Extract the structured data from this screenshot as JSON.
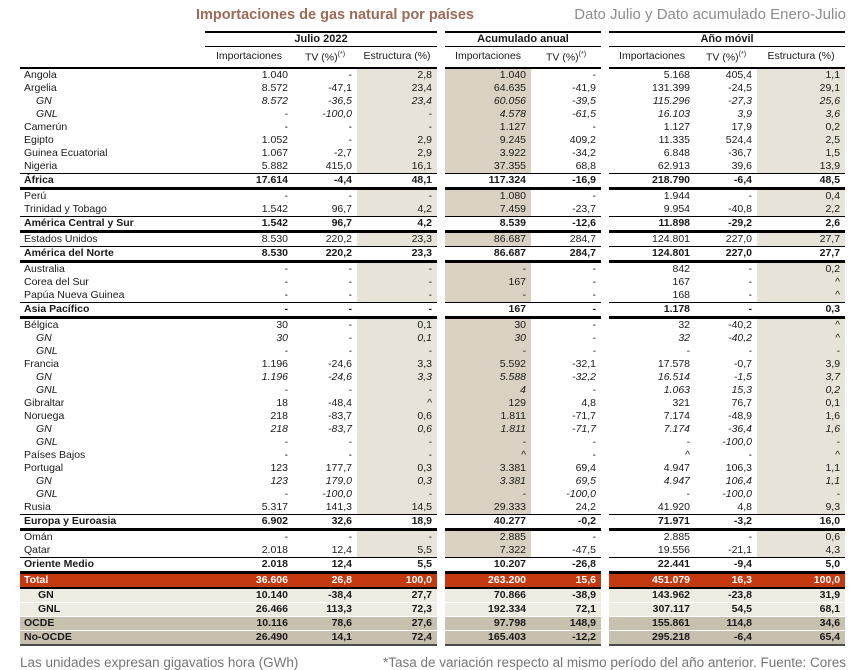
{
  "header": {
    "title": "Importaciones de gas natural por países",
    "subtitle": "Dato Julio y Dato acumulado Enero-Julio"
  },
  "table": {
    "tv_sup": "(*)",
    "groups": [
      {
        "label": "Julio 2022",
        "cols": [
          "Importaciones",
          "TV (%)",
          "Estructura (%)"
        ]
      },
      {
        "label": "Acumulado anual",
        "cols": [
          "Importaciones",
          "TV (%)"
        ]
      },
      {
        "label": "Año móvil",
        "cols": [
          "Importaciones",
          "TV (%)",
          "Estructura (%)"
        ]
      }
    ],
    "rows": [
      {
        "name": "Angola",
        "style": "normal",
        "cells": [
          "1.040",
          "-",
          "2,8",
          "1.040",
          "-",
          "5.168",
          "405,4",
          "1,1"
        ]
      },
      {
        "name": "Argelia",
        "style": "normal",
        "cells": [
          "8.572",
          "-47,1",
          "23,4",
          "64.635",
          "-41,9",
          "131.399",
          "-24,5",
          "29,1"
        ]
      },
      {
        "name": "GN",
        "style": "sub",
        "cells": [
          "8.572",
          "-36,5",
          "23,4",
          "60.056",
          "-39,5",
          "115.296",
          "-27,3",
          "25,6"
        ]
      },
      {
        "name": "GNL",
        "style": "sub",
        "cells": [
          "-",
          "-100,0",
          "-",
          "4.578",
          "-61,5",
          "16.103",
          "3,9",
          "3,6"
        ]
      },
      {
        "name": "Camerún",
        "style": "normal",
        "cells": [
          "-",
          "-",
          "-",
          "1.127",
          "-",
          "1.127",
          "17,9",
          "0,2"
        ]
      },
      {
        "name": "Egipto",
        "style": "normal",
        "cells": [
          "1.052",
          "-",
          "2,9",
          "9.245",
          "409,2",
          "11.335",
          "524,4",
          "2,5"
        ]
      },
      {
        "name": "Guinea Ecuatorial",
        "style": "normal",
        "cells": [
          "1.067",
          "-2,7",
          "2,9",
          "3.922",
          "-34,2",
          "6.848",
          "-36,7",
          "1,5"
        ]
      },
      {
        "name": "Nigeria",
        "style": "normal",
        "cells": [
          "5.882",
          "415,0",
          "16,1",
          "37.355",
          "68,8",
          "62.913",
          "39,6",
          "13,9"
        ]
      },
      {
        "name": "África",
        "style": "region",
        "cells": [
          "17.614",
          "-4,4",
          "48,1",
          "117.324",
          "-16,9",
          "218.790",
          "-6,4",
          "48,5"
        ]
      },
      {
        "name": "Perú",
        "style": "normal",
        "cells": [
          "-",
          "-",
          "-",
          "1.080",
          "-",
          "1.944",
          "-",
          "0,4"
        ]
      },
      {
        "name": "Trinidad y Tobago",
        "style": "normal",
        "cells": [
          "1.542",
          "96,7",
          "4,2",
          "7.459",
          "-23,7",
          "9.954",
          "-40,8",
          "2,2"
        ]
      },
      {
        "name": "América Central y Sur",
        "style": "region",
        "cells": [
          "1.542",
          "96,7",
          "4,2",
          "8.539",
          "-12,6",
          "11.898",
          "-29,2",
          "2,6"
        ]
      },
      {
        "name": "Estados Unidos",
        "style": "normal",
        "cells": [
          "8.530",
          "220,2",
          "23,3",
          "86.687",
          "284,7",
          "124.801",
          "227,0",
          "27,7"
        ]
      },
      {
        "name": "América del Norte",
        "style": "region",
        "cells": [
          "8.530",
          "220,2",
          "23,3",
          "86.687",
          "284,7",
          "124.801",
          "227,0",
          "27,7"
        ]
      },
      {
        "name": "Australia",
        "style": "normal",
        "cells": [
          "-",
          "-",
          "-",
          "-",
          "-",
          "842",
          "-",
          "0,2"
        ]
      },
      {
        "name": "Corea del Sur",
        "style": "normal",
        "cells": [
          "-",
          "-",
          "-",
          "167",
          "-",
          "167",
          "-",
          "^"
        ]
      },
      {
        "name": "Papúa Nueva Guinea",
        "style": "normal",
        "cells": [
          "-",
          "-",
          "-",
          "-",
          "-",
          "168",
          "-",
          "^"
        ]
      },
      {
        "name": "Asia Pacífico",
        "style": "region",
        "cells": [
          "-",
          "-",
          "-",
          "167",
          "-",
          "1.178",
          "-",
          "0,3"
        ]
      },
      {
        "name": "Bélgica",
        "style": "normal",
        "cells": [
          "30",
          "-",
          "0,1",
          "30",
          "-",
          "32",
          "-40,2",
          "^"
        ]
      },
      {
        "name": "GN",
        "style": "sub",
        "cells": [
          "30",
          "-",
          "0,1",
          "30",
          "-",
          "32",
          "-40,2",
          "^"
        ]
      },
      {
        "name": "GNL",
        "style": "sub",
        "cells": [
          "-",
          "-",
          "-",
          "-",
          "-",
          "-",
          "-",
          "-"
        ]
      },
      {
        "name": "Francia",
        "style": "normal",
        "cells": [
          "1.196",
          "-24,6",
          "3,3",
          "5.592",
          "-32,1",
          "17.578",
          "-0,7",
          "3,9"
        ]
      },
      {
        "name": "GN",
        "style": "sub",
        "cells": [
          "1.196",
          "-24,6",
          "3,3",
          "5.588",
          "-32,2",
          "16.514",
          "-1,5",
          "3,7"
        ]
      },
      {
        "name": "GNL",
        "style": "sub",
        "cells": [
          "-",
          "-",
          "-",
          "4",
          "-",
          "1.063",
          "15,3",
          "0,2"
        ]
      },
      {
        "name": "Gibraltar",
        "style": "normal",
        "cells": [
          "18",
          "-48,4",
          "^",
          "129",
          "4,8",
          "321",
          "76,7",
          "0,1"
        ]
      },
      {
        "name": "Noruega",
        "style": "normal",
        "cells": [
          "218",
          "-83,7",
          "0,6",
          "1.811",
          "-71,7",
          "7.174",
          "-48,9",
          "1,6"
        ]
      },
      {
        "name": "GN",
        "style": "sub",
        "cells": [
          "218",
          "-83,7",
          "0,6",
          "1.811",
          "-71,7",
          "7.174",
          "-36,4",
          "1,6"
        ]
      },
      {
        "name": "GNL",
        "style": "sub",
        "cells": [
          "-",
          "-",
          "-",
          "-",
          "-",
          "-",
          "-100,0",
          "-"
        ]
      },
      {
        "name": "Países Bajos",
        "style": "normal",
        "cells": [
          "-",
          "-",
          "-",
          "^",
          "-",
          "^",
          "-",
          "^"
        ]
      },
      {
        "name": "Portugal",
        "style": "normal",
        "cells": [
          "123",
          "177,7",
          "0,3",
          "3.381",
          "69,4",
          "4.947",
          "106,3",
          "1,1"
        ]
      },
      {
        "name": "GN",
        "style": "sub",
        "cells": [
          "123",
          "179,0",
          "0,3",
          "3.381",
          "69,5",
          "4.947",
          "106,4",
          "1,1"
        ]
      },
      {
        "name": "GNL",
        "style": "sub",
        "cells": [
          "-",
          "-100,0",
          "-",
          "-",
          "-100,0",
          "-",
          "-100,0",
          "-"
        ]
      },
      {
        "name": "Rusia",
        "style": "normal",
        "cells": [
          "5.317",
          "141,3",
          "14,5",
          "29.333",
          "24,2",
          "41.920",
          "4,8",
          "9,3"
        ]
      },
      {
        "name": "Europa y Euroasia",
        "style": "region",
        "cells": [
          "6.902",
          "32,6",
          "18,9",
          "40.277",
          "-0,2",
          "71.971",
          "-3,2",
          "16,0"
        ]
      },
      {
        "name": "Omán",
        "style": "normal",
        "cells": [
          "-",
          "-",
          "-",
          "2.885",
          "-",
          "2.885",
          "-",
          "0,6"
        ]
      },
      {
        "name": "Qatar",
        "style": "normal",
        "cells": [
          "2.018",
          "12,4",
          "5,5",
          "7.322",
          "-47,5",
          "19.556",
          "-21,1",
          "4,3"
        ]
      },
      {
        "name": "Oriente Medio",
        "style": "region",
        "cells": [
          "2.018",
          "12,4",
          "5,5",
          "10.207",
          "-26,8",
          "22.441",
          "-9,4",
          "5,0"
        ]
      },
      {
        "name": "Total",
        "style": "grand",
        "cells": [
          "36.606",
          "26,8",
          "100,0",
          "263.200",
          "15,6",
          "451.079",
          "16,3",
          "100,0"
        ]
      },
      {
        "name": "GN",
        "style": "bottom",
        "cells": [
          "10.140",
          "-38,4",
          "27,7",
          "70.866",
          "-38,9",
          "143.962",
          "-23,8",
          "31,9"
        ]
      },
      {
        "name": "GNL",
        "style": "bottom",
        "cells": [
          "26.466",
          "113,3",
          "72,3",
          "192.334",
          "72,1",
          "307.117",
          "54,5",
          "68,1"
        ]
      },
      {
        "name": "OCDE",
        "style": "agg",
        "cells": [
          "10.116",
          "78,6",
          "27,6",
          "97.798",
          "148,9",
          "155.861",
          "114,8",
          "34,6"
        ]
      },
      {
        "name": "No-OCDE",
        "style": "agg",
        "cells": [
          "26.490",
          "14,1",
          "72,4",
          "165.403",
          "-12,2",
          "295.218",
          "-6,4",
          "65,4"
        ]
      }
    ]
  },
  "footer": {
    "note_left": "Las unidades expresan gigavatios hora (GWh)",
    "note_right": "*Tasa de variación respecto al mismo período del año anterior. Fuente: Cores"
  },
  "colors": {
    "title": "#9c6a56",
    "subtitle": "#8c8c8c",
    "shade_light": "#e7e3d9",
    "shade_dark": "#d9d2c3",
    "total_row": "#c53911",
    "bottom_row": "#eeebe3",
    "ocde_row": "#c8c0af"
  }
}
